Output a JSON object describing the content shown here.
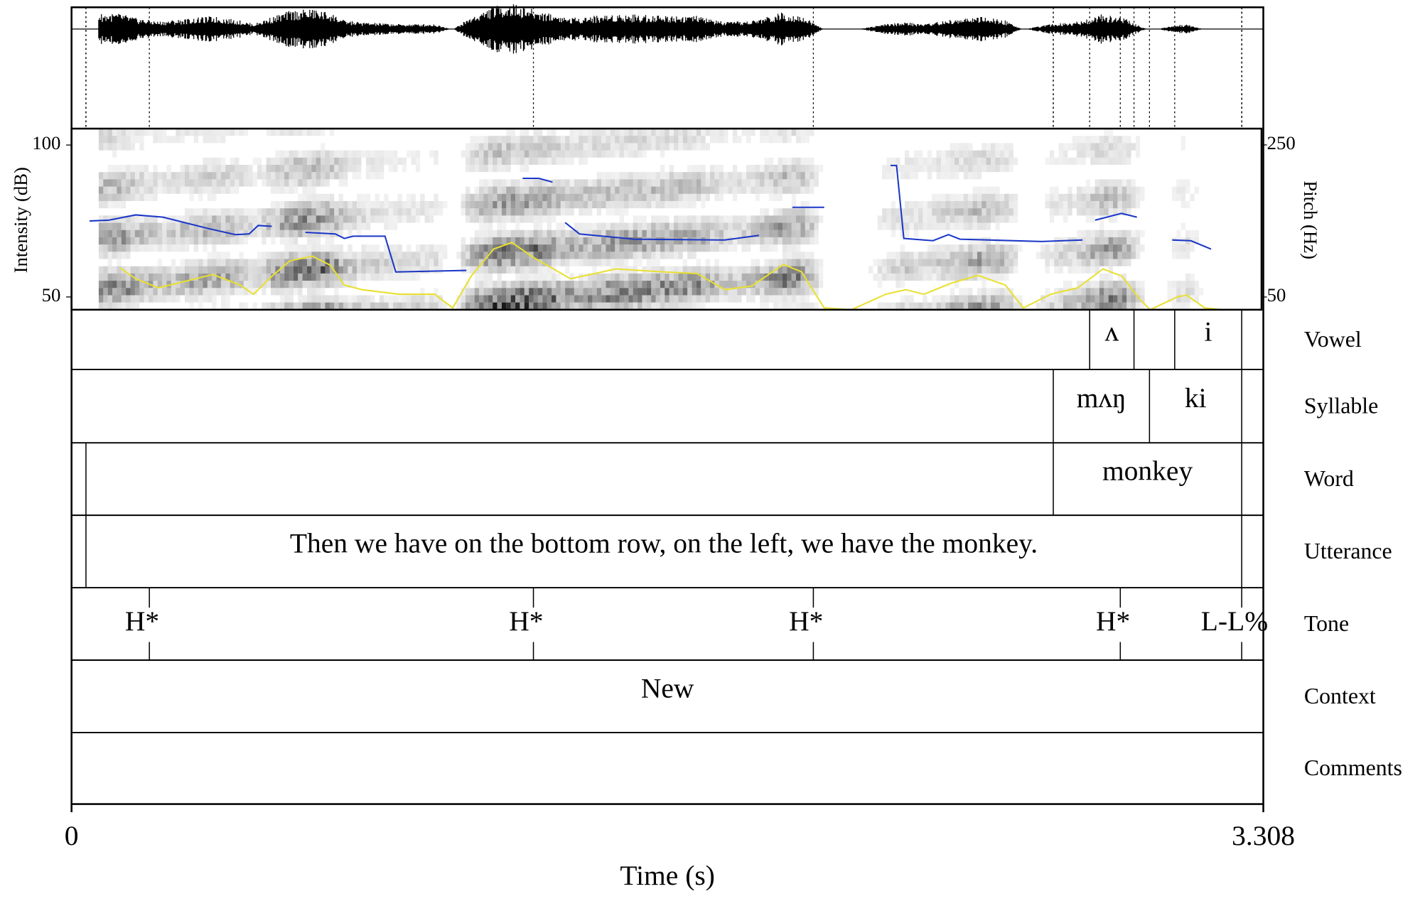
{
  "chart_data": {
    "type": "textgrid",
    "xlabel": "Time (s)",
    "xlim": [
      0,
      3.308
    ],
    "xticks": [
      0,
      3.308
    ],
    "ylabel": "Intensity (dB)",
    "ylim": [
      45.8,
      105.4
    ],
    "yticks": [
      50,
      100
    ],
    "y2label": "Pitch (Hz)",
    "y2lim": [
      33.3,
      271.4
    ],
    "y2ticks": [
      50,
      250
    ],
    "series": [
      {
        "axis": "y2",
        "color": "#1a36c8",
        "x": [
          0.05,
          0.103,
          0.178,
          0.254,
          0.38,
          0.455,
          0.493,
          0.518,
          0.556,
          null,
          0.649,
          0.732,
          0.757,
          0.782,
          0.87,
          0.9,
          1.096,
          null,
          1.252,
          1.297,
          1.335,
          null,
          1.37,
          1.41,
          1.561,
          1.813,
          1.908,
          null,
          2.001,
          2.089,
          null,
          2.273,
          2.29,
          2.31,
          2.391,
          2.434,
          2.466,
          2.693,
          2.806,
          null,
          2.841,
          2.914,
          2.957,
          null,
          3.055,
          3.107,
          3.163
        ],
        "values": [
          150,
          151,
          158,
          155,
          140,
          132,
          133,
          144,
          143,
          null,
          135,
          133,
          127,
          130,
          130,
          83,
          85,
          null,
          206,
          206,
          201,
          null,
          148,
          133,
          126,
          125,
          131,
          null,
          168,
          168,
          null,
          223,
          223,
          127,
          124,
          132,
          126,
          123,
          125,
          null,
          151,
          160,
          155,
          null,
          125,
          124,
          113
        ]
      },
      {
        "axis": "y",
        "color": "#e8e030",
        "x": [
          0.136,
          0.178,
          0.241,
          0.304,
          0.392,
          0.468,
          0.505,
          0.556,
          0.606,
          0.669,
          0.719,
          0.757,
          0.807,
          0.908,
          1.008,
          1.058,
          1.109,
          1.172,
          1.222,
          1.285,
          1.385,
          1.511,
          1.637,
          1.737,
          1.813,
          1.888,
          1.976,
          2.026,
          2.089,
          2.165,
          2.26,
          2.315,
          2.366,
          2.441,
          2.516,
          2.592,
          2.642,
          2.718,
          2.793,
          2.863,
          2.916,
          2.964,
          2.994,
          3.069,
          3.095,
          3.145,
          3.195
        ],
        "values": [
          59.5,
          56.0,
          53.0,
          54.8,
          57.4,
          53.9,
          50.9,
          56.8,
          61.9,
          63.4,
          60.4,
          53.9,
          52.4,
          50.9,
          50.9,
          46.4,
          56.8,
          65.8,
          67.9,
          62.8,
          56.0,
          59.2,
          58.3,
          57.7,
          52.4,
          53.6,
          60.7,
          58.3,
          46.4,
          45.8,
          50.9,
          52.4,
          50.9,
          54.5,
          57.1,
          53.9,
          46.4,
          50.9,
          53.0,
          59.2,
          56.8,
          49.4,
          45.8,
          50.0,
          50.6,
          46.4,
          45.8
        ]
      }
    ],
    "tiers": [
      {
        "name": "Vowel",
        "boundaries": [
          2.826,
          2.949,
          3.062,
          3.248
        ],
        "intervals": [
          {
            "start": 2.826,
            "end": 2.949,
            "label": "ʌ"
          },
          {
            "start": 3.062,
            "end": 3.248,
            "label": "i"
          }
        ]
      },
      {
        "name": "Syllable",
        "boundaries": [
          2.725,
          2.992,
          3.248
        ],
        "intervals": [
          {
            "start": 2.725,
            "end": 2.992,
            "label": "mʌŋ"
          },
          {
            "start": 2.992,
            "end": 3.248,
            "label": "ki"
          }
        ]
      },
      {
        "name": "Word",
        "boundaries": [
          0.04,
          2.725,
          3.248
        ],
        "intervals": [
          {
            "start": 2.725,
            "end": 3.248,
            "label": "monkey"
          }
        ]
      },
      {
        "name": "Utterance",
        "boundaries": [
          0.04,
          3.248
        ],
        "intervals": [
          {
            "start": 0.04,
            "end": 3.248,
            "label": "Then we have on the bottom row, on the left, we have the monkey."
          }
        ]
      },
      {
        "name": "Tone",
        "points": [
          {
            "time": 0.216,
            "label": "H*"
          },
          {
            "time": 1.282,
            "label": "H*"
          },
          {
            "time": 2.059,
            "label": "H*"
          },
          {
            "time": 2.911,
            "label": "H*"
          },
          {
            "time": 3.248,
            "label": "L-L%"
          }
        ]
      },
      {
        "name": "Context",
        "boundaries": [],
        "intervals": [
          {
            "start": 0,
            "end": 3.308,
            "label": "New"
          }
        ]
      },
      {
        "name": "Comments",
        "boundaries": [],
        "intervals": []
      }
    ]
  }
}
